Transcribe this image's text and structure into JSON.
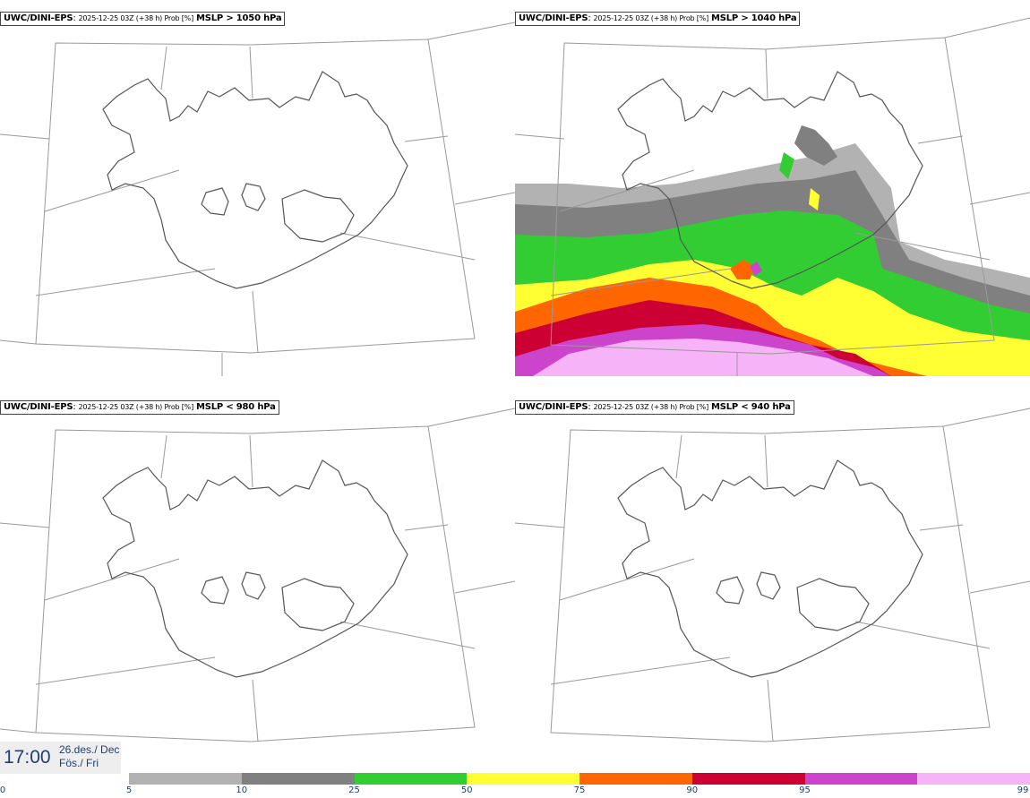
{
  "panels": [
    {
      "model": "UWC/DINI-EPS",
      "stamp": "2025-12-25 03Z (+38 h) Prob [%]",
      "field": "MSLP > 1050 hPa"
    },
    {
      "model": "UWC/DINI-EPS",
      "stamp": "2025-12-25 03Z (+38 h) Prob [%]",
      "field": "MSLP > 1040 hPa"
    },
    {
      "model": "UWC/DINI-EPS",
      "stamp": "2025-12-25 03Z (+38 h) Prob [%]",
      "field": "MSLP < 980 hPa"
    },
    {
      "model": "UWC/DINI-EPS",
      "stamp": "2025-12-25 03Z (+38 h) Prob [%]",
      "field": "MSLP < 940 hPa"
    }
  ],
  "time_box": {
    "time": "17:00",
    "date_line1": "26.des./ Dec",
    "date_line2": "Fös./ Fri"
  },
  "legend": {
    "ticks": [
      "0",
      "5",
      "10",
      "25",
      "50",
      "75",
      "90",
      "95",
      "99"
    ],
    "colors": [
      "#b2b2b2",
      "#808080",
      "#32cd32",
      "#ffff33",
      "#ff6600",
      "#cc0033",
      "#cc44cc",
      "#f7b3f7"
    ]
  }
}
